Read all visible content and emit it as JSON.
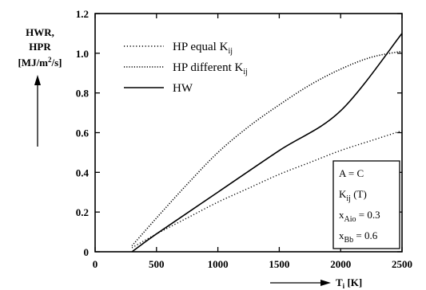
{
  "chart_data": {
    "type": "line",
    "ylabel": [
      "HWR,",
      "HPR",
      "[MJ/m",
      "2",
      "/s]"
    ],
    "xlabel": {
      "main": "T",
      "sub": "i",
      "unit": " [K]"
    },
    "xlim": [
      0,
      2500
    ],
    "ylim": [
      0,
      1.2
    ],
    "x_ticks": [
      0,
      500,
      1000,
      1500,
      2000,
      2500
    ],
    "y_ticks": [
      0,
      0.2,
      0.4,
      0.6,
      0.8,
      1.0,
      1.2
    ],
    "x_tick_labels": [
      "0",
      "500",
      "1000",
      "1500",
      "2000",
      "2500"
    ],
    "y_tick_labels": [
      "0",
      "0.2",
      "0.4",
      "0.6",
      "0.8",
      "1.0",
      "1.2"
    ],
    "series": [
      {
        "legend": {
          "main": "HP equal K",
          "sub": "ij"
        },
        "style": "dotted",
        "x": [
          300,
          500,
          750,
          1000,
          1250,
          1500,
          1750,
          2000,
          2250,
          2500
        ],
        "y": [
          0.02,
          0.09,
          0.17,
          0.25,
          0.32,
          0.39,
          0.45,
          0.51,
          0.56,
          0.61
        ]
      },
      {
        "legend": {
          "main": "HP different K",
          "sub": "ij"
        },
        "style": "densely-dotted",
        "x": [
          300,
          500,
          750,
          1000,
          1250,
          1500,
          1750,
          2000,
          2250,
          2500
        ],
        "y": [
          0.03,
          0.17,
          0.34,
          0.5,
          0.63,
          0.74,
          0.84,
          0.92,
          0.98,
          1.01
        ]
      },
      {
        "legend": {
          "main": "HW",
          "sub": ""
        },
        "style": "solid",
        "x": [
          300,
          500,
          1000,
          1500,
          2000,
          2500
        ],
        "y": [
          0.0,
          0.09,
          0.3,
          0.51,
          0.71,
          1.1
        ]
      }
    ],
    "annotation_box": [
      {
        "main": "A = C",
        "sub": "",
        "rest": ""
      },
      {
        "main": "K",
        "sub": "ij",
        "rest": " (T)"
      },
      {
        "main": "x",
        "sub": "Aio",
        "rest": " = 0.3"
      },
      {
        "main": "x",
        "sub": "Bb",
        "rest": " = 0.6"
      }
    ]
  }
}
